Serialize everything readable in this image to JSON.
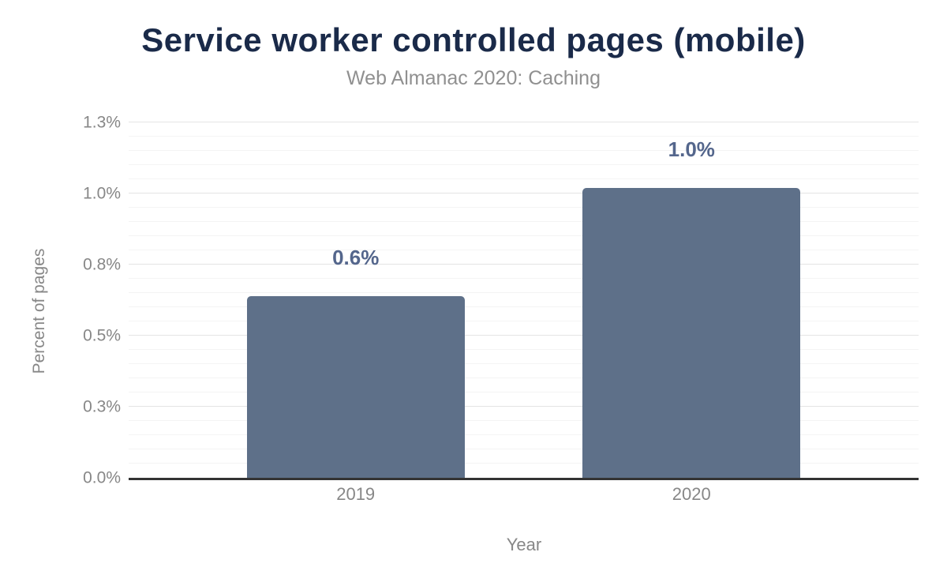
{
  "chart_data": {
    "type": "bar",
    "title": "Service worker controlled pages (mobile)",
    "subtitle": "Web Almanac 2020: Caching",
    "categories": [
      "2019",
      "2020"
    ],
    "values": [
      0.64,
      1.02
    ],
    "value_labels": [
      "0.6%",
      "1.0%"
    ],
    "xlabel": "Year",
    "ylabel": "Percent of pages",
    "ylim": [
      0,
      1.25
    ],
    "yticks": [
      {
        "value": 0,
        "label": "0.0%"
      },
      {
        "value": 0.25,
        "label": "0.3%"
      },
      {
        "value": 0.5,
        "label": "0.5%"
      },
      {
        "value": 0.75,
        "label": "0.8%"
      },
      {
        "value": 1.0,
        "label": "1.0%"
      },
      {
        "value": 1.25,
        "label": "1.3%"
      }
    ],
    "minor_tick_step": 0.05,
    "grid": true,
    "legend": "none",
    "layout": {
      "bar_width_fraction": 0.2755
    },
    "colors": {
      "bar": "#5e7089",
      "value_label": "#54668c",
      "title": "#1a2a49",
      "subtitle": "#909090",
      "axis_text": "#878787",
      "major_grid": "#e4e4e4",
      "minor_grid": "#f4f4f4",
      "axis_line": "#333333"
    }
  }
}
